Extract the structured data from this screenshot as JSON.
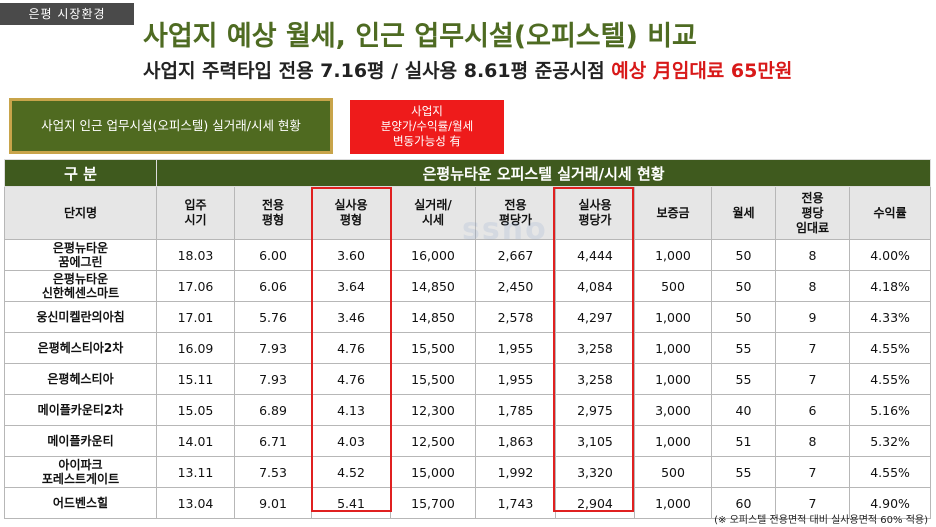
{
  "tag": "은평 시장환경",
  "title": "사업지 예상 월세, 인근 업무시설(오피스텔) 비교",
  "subtitle": {
    "prefix": "사업지 주력타입 전용 7.16평 / 실사용 8.61평 준공시점",
    "highlight": "예상 月임대료 65만원"
  },
  "green_box": "사업지 인근 업무시설(오피스텔) 실거래/시세 현황",
  "red_box": [
    "사업지",
    "분양가/수익률/월세",
    "변동가능성 有"
  ],
  "table": {
    "group_header_left": "구 분",
    "group_header_right": "은평뉴타운 오피스텔 실거래/시세 현황",
    "columns": [
      "단지명",
      "입주\n시기",
      "전용\n평형",
      "실사용\n평형",
      "실거래/\n시세",
      "전용\n평당가",
      "실사용\n평당가",
      "보증금",
      "월세",
      "전용\n평당\n임대료",
      "수익률"
    ],
    "rows": [
      [
        "은평뉴타운\n꿈에그린",
        "18.03",
        "6.00",
        "3.60",
        "16,000",
        "2,667",
        "4,444",
        "1,000",
        "50",
        "8",
        "4.00%"
      ],
      [
        "은평뉴타운\n신한헤센스마트",
        "17.06",
        "6.06",
        "3.64",
        "14,850",
        "2,450",
        "4,084",
        "500",
        "50",
        "8",
        "4.18%"
      ],
      [
        "웅신미켈란의아침",
        "17.01",
        "5.76",
        "3.46",
        "14,850",
        "2,578",
        "4,297",
        "1,000",
        "50",
        "9",
        "4.33%"
      ],
      [
        "은평헤스티아2차",
        "16.09",
        "7.93",
        "4.76",
        "15,500",
        "1,955",
        "3,258",
        "1,000",
        "55",
        "7",
        "4.55%"
      ],
      [
        "은평헤스티아",
        "15.11",
        "7.93",
        "4.76",
        "15,500",
        "1,955",
        "3,258",
        "1,000",
        "55",
        "7",
        "4.55%"
      ],
      [
        "메이플카운티2차",
        "15.05",
        "6.89",
        "4.13",
        "12,300",
        "1,785",
        "2,975",
        "3,000",
        "40",
        "6",
        "5.16%"
      ],
      [
        "메이플카운티",
        "14.01",
        "6.71",
        "4.03",
        "12,500",
        "1,863",
        "3,105",
        "1,000",
        "51",
        "8",
        "5.32%"
      ],
      [
        "아이파크\n포레스트게이트",
        "13.11",
        "7.53",
        "4.52",
        "15,000",
        "1,992",
        "3,320",
        "500",
        "55",
        "7",
        "4.55%"
      ],
      [
        "어드벤스힐",
        "13.04",
        "9.01",
        "5.41",
        "15,700",
        "1,743",
        "2,904",
        "1,000",
        "60",
        "7",
        "4.90%"
      ]
    ]
  },
  "footnote": "(※ 오피스텔 전용면적 대비 실사용면적 60% 적용)",
  "colors": {
    "title_green": "#4e6b22",
    "header_green": "#3f5a1e",
    "highlight_red": "#e02020"
  }
}
